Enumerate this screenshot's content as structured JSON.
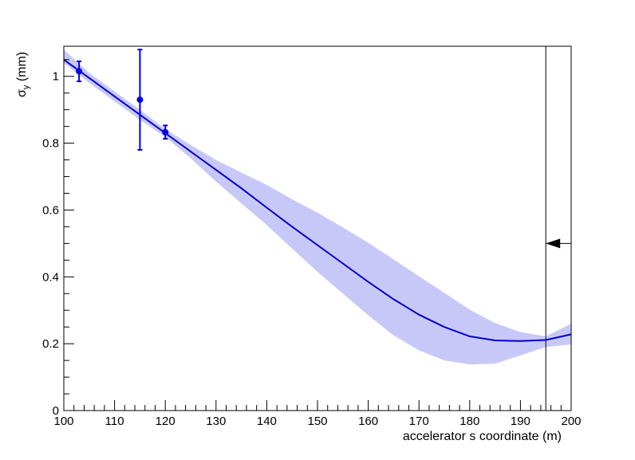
{
  "chart_data": {
    "type": "line",
    "title": "",
    "xlabel": "accelerator s coordinate (m)",
    "ylabel": "σ",
    "ylabel_subscript": "y",
    "ylabel_unit": " (mm)",
    "xlim": [
      100,
      200
    ],
    "ylim": [
      0,
      1.09
    ],
    "x_ticks": [
      100,
      110,
      120,
      130,
      140,
      150,
      160,
      170,
      180,
      190,
      200
    ],
    "y_ticks": [
      0,
      0.2,
      0.4,
      0.6,
      0.8,
      1
    ],
    "x_tick_labels": [
      "100",
      "110",
      "120",
      "130",
      "140",
      "150",
      "160",
      "170",
      "180",
      "190",
      "200"
    ],
    "y_tick_labels": [
      "0",
      "0.2",
      "0.4",
      "0.6",
      "0.8",
      "1"
    ],
    "grid": false,
    "colors": {
      "fit": "#0000cc",
      "band": "#c8c8f8",
      "points": "#0000e6",
      "marker": "#000000"
    },
    "fit_curve": {
      "x": [
        100,
        105,
        110,
        115,
        120,
        125,
        130,
        135,
        140,
        145,
        150,
        155,
        160,
        165,
        170,
        175,
        180,
        185,
        190,
        195,
        200
      ],
      "y": [
        1.05,
        0.995,
        0.94,
        0.885,
        0.83,
        0.775,
        0.72,
        0.665,
        0.607,
        0.55,
        0.495,
        0.44,
        0.385,
        0.333,
        0.287,
        0.25,
        0.222,
        0.21,
        0.208,
        0.211,
        0.228
      ]
    },
    "error_band": {
      "x": [
        100,
        105,
        110,
        115,
        120,
        125,
        130,
        135,
        140,
        145,
        150,
        155,
        160,
        165,
        170,
        175,
        180,
        185,
        190,
        195,
        200
      ],
      "lower": [
        1.04,
        0.98,
        0.925,
        0.87,
        0.818,
        0.755,
        0.685,
        0.62,
        0.555,
        0.485,
        0.415,
        0.35,
        0.285,
        0.225,
        0.18,
        0.15,
        0.138,
        0.14,
        0.165,
        0.19,
        0.198
      ],
      "upper": [
        1.08,
        1.01,
        0.955,
        0.9,
        0.842,
        0.795,
        0.75,
        0.712,
        0.675,
        0.632,
        0.592,
        0.548,
        0.502,
        0.452,
        0.402,
        0.352,
        0.302,
        0.262,
        0.235,
        0.222,
        0.26
      ]
    },
    "data_points": [
      {
        "x": 103,
        "y": 1.015,
        "err": 0.03
      },
      {
        "x": 115,
        "y": 0.93,
        "err": 0.15
      },
      {
        "x": 120,
        "y": 0.833,
        "err": 0.02
      }
    ],
    "marker": {
      "x": 195,
      "arrow_y": 0.5
    }
  }
}
